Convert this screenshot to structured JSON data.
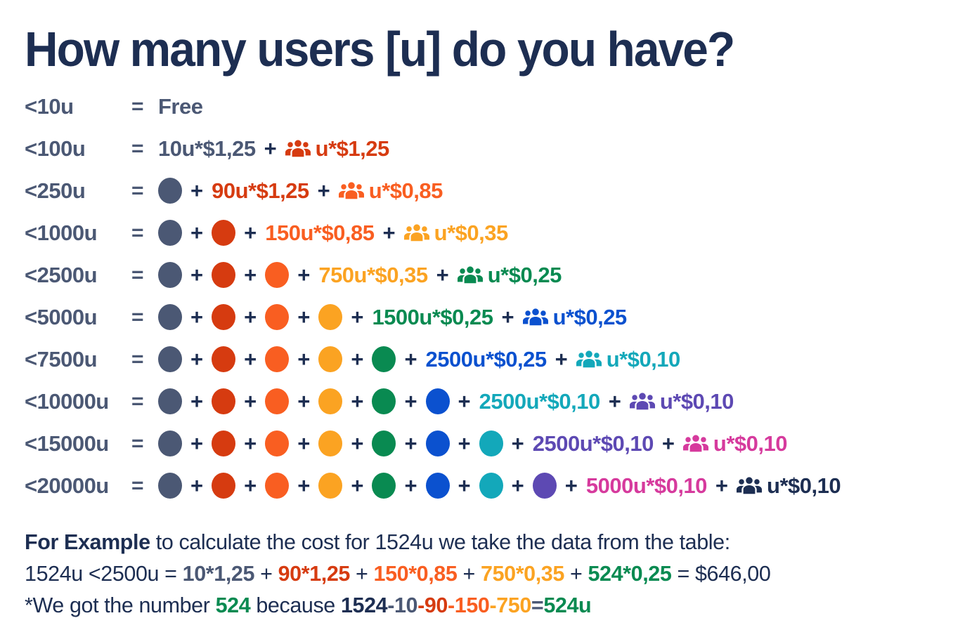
{
  "title": "How many users [u] do you have?",
  "equals_sign": "=",
  "plus_sign": "+",
  "users_icon_name": "users-group-icon",
  "colors": {
    "navy": "#1d2e52",
    "slate": "#4b5874",
    "red": "#d63b10",
    "orange": "#f95e21",
    "amber": "#fba322",
    "green": "#098a51",
    "blue": "#0b51cf",
    "teal": "#13a8ba",
    "purple": "#5d49b3",
    "magenta": "#d63a9d"
  },
  "tiers": [
    {
      "label": "<10u",
      "items": [
        {
          "type": "text",
          "text": "Free",
          "color": "slate"
        }
      ]
    },
    {
      "label": "<100u",
      "items": [
        {
          "type": "text",
          "text": "10u*$1,25",
          "color": "slate"
        },
        {
          "type": "plus"
        },
        {
          "type": "group",
          "text": "u*$1,25",
          "color": "red"
        }
      ]
    },
    {
      "label": "<250u",
      "items": [
        {
          "type": "dot",
          "color": "slate"
        },
        {
          "type": "plus"
        },
        {
          "type": "text",
          "text": "90u*$1,25",
          "color": "red"
        },
        {
          "type": "plus"
        },
        {
          "type": "group",
          "text": "u*$0,85",
          "color": "orange"
        }
      ]
    },
    {
      "label": "<1000u",
      "items": [
        {
          "type": "dot",
          "color": "slate"
        },
        {
          "type": "plus"
        },
        {
          "type": "dot",
          "color": "red"
        },
        {
          "type": "plus"
        },
        {
          "type": "text",
          "text": "150u*$0,85",
          "color": "orange"
        },
        {
          "type": "plus"
        },
        {
          "type": "group",
          "text": "u*$0,35",
          "color": "amber"
        }
      ]
    },
    {
      "label": "<2500u",
      "items": [
        {
          "type": "dot",
          "color": "slate"
        },
        {
          "type": "plus"
        },
        {
          "type": "dot",
          "color": "red"
        },
        {
          "type": "plus"
        },
        {
          "type": "dot",
          "color": "orange"
        },
        {
          "type": "plus"
        },
        {
          "type": "text",
          "text": "750u*$0,35",
          "color": "amber"
        },
        {
          "type": "plus"
        },
        {
          "type": "group",
          "text": "u*$0,25",
          "color": "green"
        }
      ]
    },
    {
      "label": "<5000u",
      "items": [
        {
          "type": "dot",
          "color": "slate"
        },
        {
          "type": "plus"
        },
        {
          "type": "dot",
          "color": "red"
        },
        {
          "type": "plus"
        },
        {
          "type": "dot",
          "color": "orange"
        },
        {
          "type": "plus"
        },
        {
          "type": "dot",
          "color": "amber"
        },
        {
          "type": "plus"
        },
        {
          "type": "text",
          "text": "1500u*$0,25",
          "color": "green"
        },
        {
          "type": "plus"
        },
        {
          "type": "group",
          "text": "u*$0,25",
          "color": "blue"
        }
      ]
    },
    {
      "label": "<7500u",
      "items": [
        {
          "type": "dot",
          "color": "slate"
        },
        {
          "type": "plus"
        },
        {
          "type": "dot",
          "color": "red"
        },
        {
          "type": "plus"
        },
        {
          "type": "dot",
          "color": "orange"
        },
        {
          "type": "plus"
        },
        {
          "type": "dot",
          "color": "amber"
        },
        {
          "type": "plus"
        },
        {
          "type": "dot",
          "color": "green"
        },
        {
          "type": "plus"
        },
        {
          "type": "text",
          "text": "2500u*$0,25",
          "color": "blue"
        },
        {
          "type": "plus"
        },
        {
          "type": "group",
          "text": "u*$0,10",
          "color": "teal"
        }
      ]
    },
    {
      "label": "<10000u",
      "items": [
        {
          "type": "dot",
          "color": "slate"
        },
        {
          "type": "plus"
        },
        {
          "type": "dot",
          "color": "red"
        },
        {
          "type": "plus"
        },
        {
          "type": "dot",
          "color": "orange"
        },
        {
          "type": "plus"
        },
        {
          "type": "dot",
          "color": "amber"
        },
        {
          "type": "plus"
        },
        {
          "type": "dot",
          "color": "green"
        },
        {
          "type": "plus"
        },
        {
          "type": "dot",
          "color": "blue"
        },
        {
          "type": "plus"
        },
        {
          "type": "text",
          "text": "2500u*$0,10",
          "color": "teal"
        },
        {
          "type": "plus"
        },
        {
          "type": "group",
          "text": "u*$0,10",
          "color": "purple"
        }
      ]
    },
    {
      "label": "<15000u",
      "items": [
        {
          "type": "dot",
          "color": "slate"
        },
        {
          "type": "plus"
        },
        {
          "type": "dot",
          "color": "red"
        },
        {
          "type": "plus"
        },
        {
          "type": "dot",
          "color": "orange"
        },
        {
          "type": "plus"
        },
        {
          "type": "dot",
          "color": "amber"
        },
        {
          "type": "plus"
        },
        {
          "type": "dot",
          "color": "green"
        },
        {
          "type": "plus"
        },
        {
          "type": "dot",
          "color": "blue"
        },
        {
          "type": "plus"
        },
        {
          "type": "dot",
          "color": "teal"
        },
        {
          "type": "plus"
        },
        {
          "type": "text",
          "text": "2500u*$0,10",
          "color": "purple"
        },
        {
          "type": "plus"
        },
        {
          "type": "group",
          "text": "u*$0,10",
          "color": "magenta"
        }
      ]
    },
    {
      "label": "<20000u",
      "items": [
        {
          "type": "dot",
          "color": "slate"
        },
        {
          "type": "plus"
        },
        {
          "type": "dot",
          "color": "red"
        },
        {
          "type": "plus"
        },
        {
          "type": "dot",
          "color": "orange"
        },
        {
          "type": "plus"
        },
        {
          "type": "dot",
          "color": "amber"
        },
        {
          "type": "plus"
        },
        {
          "type": "dot",
          "color": "green"
        },
        {
          "type": "plus"
        },
        {
          "type": "dot",
          "color": "blue"
        },
        {
          "type": "plus"
        },
        {
          "type": "dot",
          "color": "teal"
        },
        {
          "type": "plus"
        },
        {
          "type": "dot",
          "color": "purple"
        },
        {
          "type": "plus"
        },
        {
          "type": "text",
          "text": "5000u*$0,10",
          "color": "magenta"
        },
        {
          "type": "plus"
        },
        {
          "type": "group",
          "text": "u*$0,10",
          "color": "navy"
        }
      ]
    }
  ],
  "example": {
    "lines": [
      {
        "segments": [
          {
            "text": "For Example",
            "bold": true,
            "color": "navy"
          },
          {
            "text": " to calculate the cost for 1524u we take the data from the table:",
            "bold": false,
            "color": "navy"
          }
        ]
      },
      {
        "segments": [
          {
            "text": "1524u <2500u = ",
            "bold": false,
            "color": "navy"
          },
          {
            "text": "10*1,25",
            "bold": true,
            "color": "slate"
          },
          {
            "text": " + ",
            "bold": false,
            "color": "navy"
          },
          {
            "text": "90*1,25",
            "bold": true,
            "color": "red"
          },
          {
            "text": " + ",
            "bold": false,
            "color": "navy"
          },
          {
            "text": "150*0,85",
            "bold": true,
            "color": "orange"
          },
          {
            "text": " + ",
            "bold": false,
            "color": "navy"
          },
          {
            "text": "750*0,35",
            "bold": true,
            "color": "amber"
          },
          {
            "text": " + ",
            "bold": false,
            "color": "navy"
          },
          {
            "text": "524*0,25",
            "bold": true,
            "color": "green"
          },
          {
            "text": " = $646,00",
            "bold": false,
            "color": "navy"
          }
        ]
      },
      {
        "segments": [
          {
            "text": "*We got the number ",
            "bold": false,
            "color": "navy"
          },
          {
            "text": "524",
            "bold": true,
            "color": "green"
          },
          {
            "text": " because ",
            "bold": false,
            "color": "navy"
          },
          {
            "text": "1524",
            "bold": true,
            "color": "navy"
          },
          {
            "text": "-10",
            "bold": true,
            "color": "slate"
          },
          {
            "text": "-90",
            "bold": true,
            "color": "red"
          },
          {
            "text": "-150",
            "bold": true,
            "color": "orange"
          },
          {
            "text": "-750",
            "bold": true,
            "color": "amber"
          },
          {
            "text": "=",
            "bold": true,
            "color": "slate"
          },
          {
            "text": "524u",
            "bold": true,
            "color": "green"
          }
        ]
      }
    ]
  }
}
